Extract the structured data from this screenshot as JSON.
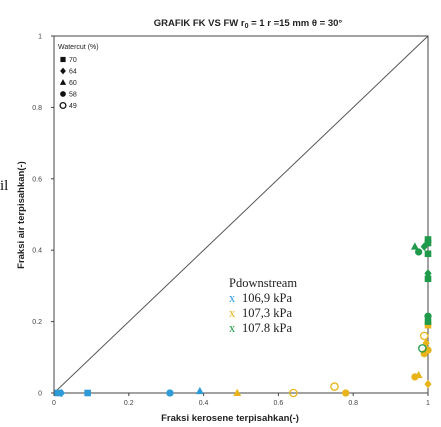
{
  "chart_data": {
    "type": "scatter",
    "title": "GRAFIK  FK  VS  FW  r",
    "title_sub": "0",
    "title_rest": " = 1  r =15 mm  θ = 30°",
    "xlabel": "Fraksi kerosene terpisahkan(-)",
    "ylabel": "Fraksi air terpisahkan(-)",
    "xlim": [
      0,
      1
    ],
    "ylim": [
      0,
      1
    ],
    "x_ticks": [
      "0",
      "0.2",
      "0.4",
      "0.6",
      "0.8",
      "1"
    ],
    "y_ticks": [
      "0",
      "0.2",
      "0.4",
      "0.6",
      "0.8",
      "1"
    ],
    "grid": false,
    "reference_line": "diagonal y = x",
    "stray_text": "il",
    "legend_markers": {
      "title": "Watercut (%)",
      "placement": "top-left",
      "items": [
        {
          "label": "70",
          "marker": "square"
        },
        {
          "label": "64",
          "marker": "diamond"
        },
        {
          "label": "60",
          "marker": "triangle"
        },
        {
          "label": "58",
          "marker": "circle"
        },
        {
          "label": "49",
          "marker": "open-circle"
        }
      ]
    },
    "legend_pressure": {
      "title": "Pdownstream",
      "placement": "lower-right",
      "items": [
        {
          "label": "106,9 kPa",
          "color": "#2e9bd6"
        },
        {
          "label": "107,3 kPa",
          "color": "#e8b41a"
        },
        {
          "label": "107.8 kPa",
          "color": "#1f9a4a"
        }
      ]
    },
    "series": [
      {
        "name": "106,9 kPa",
        "color": "#2e9bd6",
        "points": [
          {
            "x": 0.01,
            "y": 0.0,
            "marker": "square"
          },
          {
            "x": 0.02,
            "y": 0.0,
            "marker": "diamond"
          },
          {
            "x": 0.09,
            "y": 0.0,
            "marker": "square"
          },
          {
            "x": 0.31,
            "y": 0.0,
            "marker": "circle"
          },
          {
            "x": 0.39,
            "y": 0.005,
            "marker": "triangle"
          }
        ]
      },
      {
        "name": "107,3 kPa",
        "color": "#e8b41a",
        "points": [
          {
            "x": 0.49,
            "y": 0.0,
            "marker": "triangle"
          },
          {
            "x": 0.64,
            "y": 0.0,
            "marker": "open-circle"
          },
          {
            "x": 0.75,
            "y": 0.018,
            "marker": "open-circle"
          },
          {
            "x": 0.78,
            "y": 0.0,
            "marker": "circle"
          },
          {
            "x": 0.965,
            "y": 0.045,
            "marker": "circle"
          },
          {
            "x": 0.975,
            "y": 0.05,
            "marker": "triangle"
          },
          {
            "x": 0.99,
            "y": 0.11,
            "marker": "circle"
          },
          {
            "x": 0.995,
            "y": 0.14,
            "marker": "diamond"
          },
          {
            "x": 0.99,
            "y": 0.16,
            "marker": "open-circle"
          },
          {
            "x": 1.0,
            "y": 0.12,
            "marker": "circle"
          },
          {
            "x": 1.0,
            "y": 0.19,
            "marker": "square"
          },
          {
            "x": 1.0,
            "y": 0.025,
            "marker": "diamond"
          }
        ]
      },
      {
        "name": "107.8 kPa",
        "color": "#1f9a4a",
        "points": [
          {
            "x": 0.965,
            "y": 0.41,
            "marker": "triangle"
          },
          {
            "x": 0.975,
            "y": 0.395,
            "marker": "circle"
          },
          {
            "x": 0.99,
            "y": 0.41,
            "marker": "diamond"
          },
          {
            "x": 1.0,
            "y": 0.43,
            "marker": "square"
          },
          {
            "x": 1.0,
            "y": 0.42,
            "marker": "square"
          },
          {
            "x": 1.0,
            "y": 0.39,
            "marker": "square"
          },
          {
            "x": 1.0,
            "y": 0.335,
            "marker": "diamond"
          },
          {
            "x": 1.0,
            "y": 0.32,
            "marker": "square"
          },
          {
            "x": 1.0,
            "y": 0.215,
            "marker": "circle"
          },
          {
            "x": 1.0,
            "y": 0.2,
            "marker": "square"
          },
          {
            "x": 0.985,
            "y": 0.125,
            "marker": "open-circle"
          }
        ]
      }
    ]
  }
}
